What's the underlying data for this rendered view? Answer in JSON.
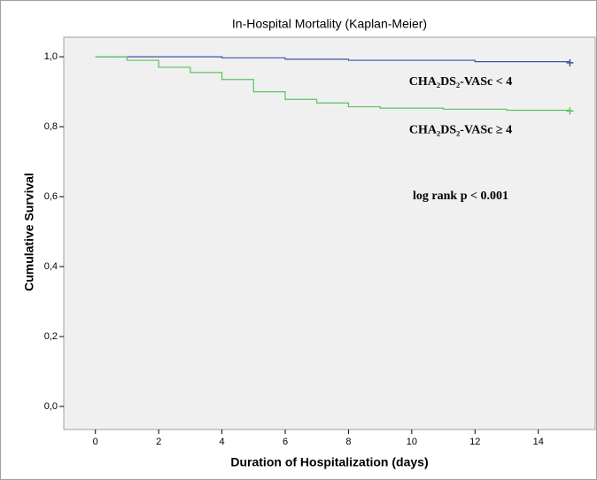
{
  "chart_data": {
    "type": "step",
    "title": "In-Hospital Mortality (Kaplan-Meier)",
    "x_label": "Duration of Hospitalization (days)",
    "y_label": "Cumulative Survival",
    "annotation": "log rank p < 0.001",
    "xlim": [
      -1,
      15.8
    ],
    "ylim": [
      -0.066,
      1.056
    ],
    "xticks": [
      0,
      2,
      4,
      6,
      8,
      10,
      12,
      14
    ],
    "yticks": [
      {
        "value": 0,
        "label": "0,0"
      },
      {
        "value": 0.2,
        "label": "0,2"
      },
      {
        "value": 0.4,
        "label": "0,4"
      },
      {
        "value": 0.6,
        "label": "0,6"
      },
      {
        "value": 0.8,
        "label": "0,8"
      },
      {
        "value": 1.0,
        "label": "1,0"
      }
    ],
    "series": [
      {
        "name": "CHA₂DS₂-VASc < 4",
        "color": "#3f51a3",
        "x": [
          0,
          4,
          6,
          8,
          12,
          15
        ],
        "values": [
          1.0,
          0.997,
          0.993,
          0.99,
          0.986,
          0.983
        ]
      },
      {
        "name": "CHA₂DS₂-VASc  ≥ 4",
        "color": "#5cc35c",
        "x": [
          0,
          1,
          2,
          3,
          4,
          5,
          6,
          7,
          8,
          9,
          11,
          13,
          15
        ],
        "values": [
          1.0,
          0.99,
          0.97,
          0.955,
          0.935,
          0.9,
          0.878,
          0.868,
          0.857,
          0.853,
          0.85,
          0.847,
          0.845
        ]
      }
    ]
  }
}
